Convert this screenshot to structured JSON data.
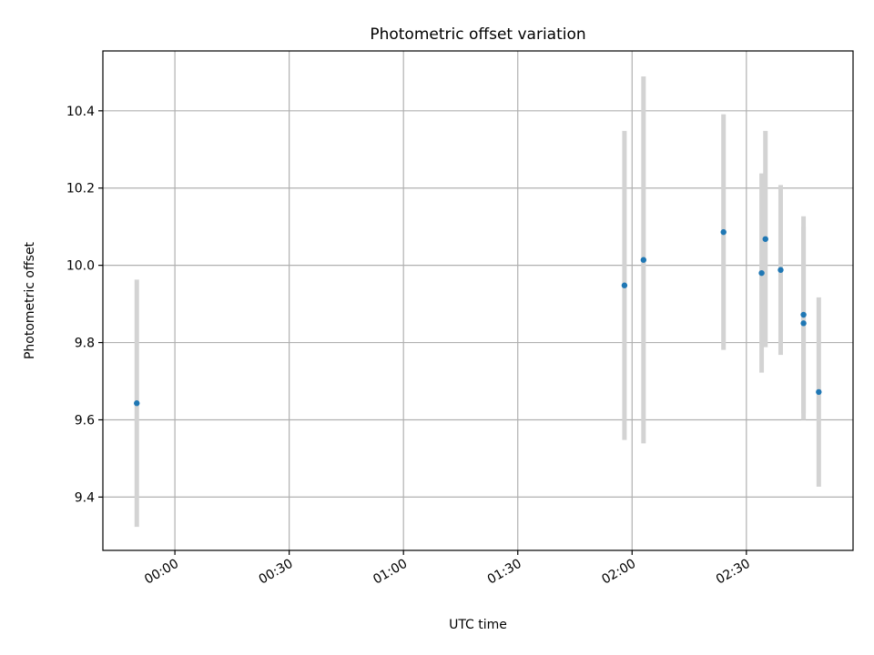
{
  "chart_data": {
    "type": "scatter",
    "title": "Photometric offset variation",
    "xlabel": "UTC time",
    "ylabel": "Photometric offset",
    "x_axis": {
      "kind": "time",
      "range_minutes": [
        -18.9,
        178.0
      ],
      "tick_minutes": [
        0,
        30,
        60,
        90,
        120,
        150
      ],
      "tick_labels": [
        "00:00",
        "00:30",
        "01:00",
        "01:30",
        "02:00",
        "02:30"
      ]
    },
    "y_axis": {
      "range": [
        9.262,
        10.555
      ],
      "ticks": [
        9.4,
        9.6,
        9.8,
        10.0,
        10.2,
        10.4
      ],
      "tick_labels": [
        "9.4",
        "9.6",
        "9.8",
        "10.0",
        "10.2",
        "10.4"
      ]
    },
    "grid": true,
    "marker_color": "#1f77b4",
    "errorbar_color": "#d3d3d3",
    "points": [
      {
        "time": "23:50",
        "y": 9.643,
        "err": 0.32
      },
      {
        "time": "01:58",
        "y": 9.948,
        "err": 0.4
      },
      {
        "time": "02:03",
        "y": 10.014,
        "err": 0.475
      },
      {
        "time": "02:24",
        "y": 10.086,
        "err": 0.305
      },
      {
        "time": "02:34",
        "y": 9.98,
        "err": 0.258
      },
      {
        "time": "02:35",
        "y": 10.068,
        "err": 0.28
      },
      {
        "time": "02:39",
        "y": 9.988,
        "err": 0.22
      },
      {
        "time": "02:45",
        "y": 9.872,
        "err": 0.255
      },
      {
        "time": "02:45",
        "y": 9.85,
        "err": 0.25
      },
      {
        "time": "02:49",
        "y": 9.672,
        "err": 0.245
      }
    ]
  }
}
